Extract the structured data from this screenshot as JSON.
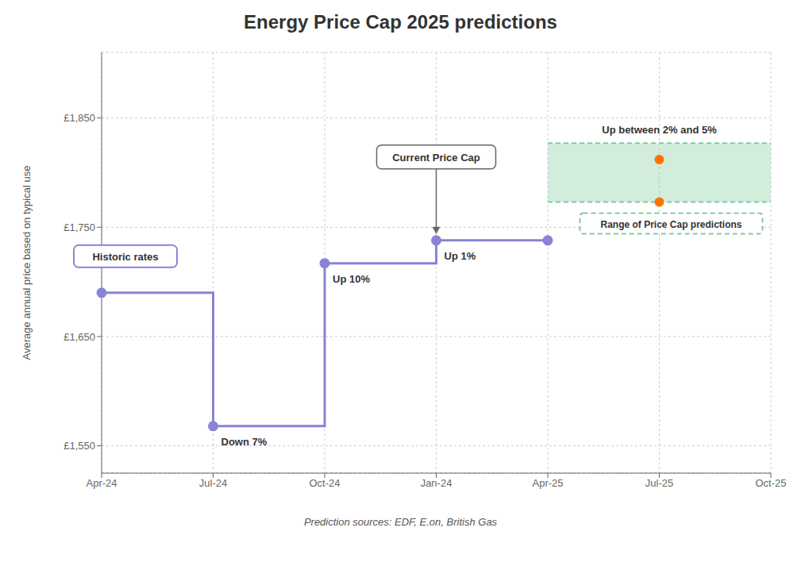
{
  "chart_data": {
    "type": "line",
    "title": "Energy Price Cap 2025 predictions",
    "y_label": "Average annual price based on typical use",
    "categories": [
      "Apr-24",
      "Jul-24",
      "Oct-24",
      "Jan-24",
      "Apr-25",
      "Jul-25",
      "Oct-25"
    ],
    "series": [
      {
        "name": "Historic rates",
        "type": "step",
        "color": "#8884d8",
        "marker": "circle",
        "values": [
          1690,
          1568,
          1717,
          1738,
          1738,
          null,
          null
        ]
      },
      {
        "name": "Range of Price Cap predictions",
        "type": "range",
        "color": "#82ca9d",
        "line_style": "dashed",
        "values": [
          null,
          null,
          null,
          null,
          [
            1773,
            1827
          ],
          [
            1773,
            1827
          ],
          [
            1773,
            1827
          ]
        ]
      },
      {
        "type": "scatter",
        "color": "#ff7300",
        "marker": "circle",
        "x": [
          "Jul-25",
          "Jul-25"
        ],
        "values": [
          1773,
          1812
        ]
      }
    ],
    "ylim": [
      1525,
      1910
    ],
    "yticks": [
      {
        "value": 1550,
        "label": "£1,550"
      },
      {
        "value": 1650,
        "label": "£1,650"
      },
      {
        "value": 1750,
        "label": "£1,750"
      },
      {
        "value": 1850,
        "label": "£1,850"
      }
    ],
    "grid": true,
    "annotations": [
      "Down 7%",
      "Up 10%",
      "Up 1%",
      "Up between 2% and 5%",
      "Current Price Cap",
      "Prediction sources: EDF, E.on, British Gas"
    ]
  }
}
